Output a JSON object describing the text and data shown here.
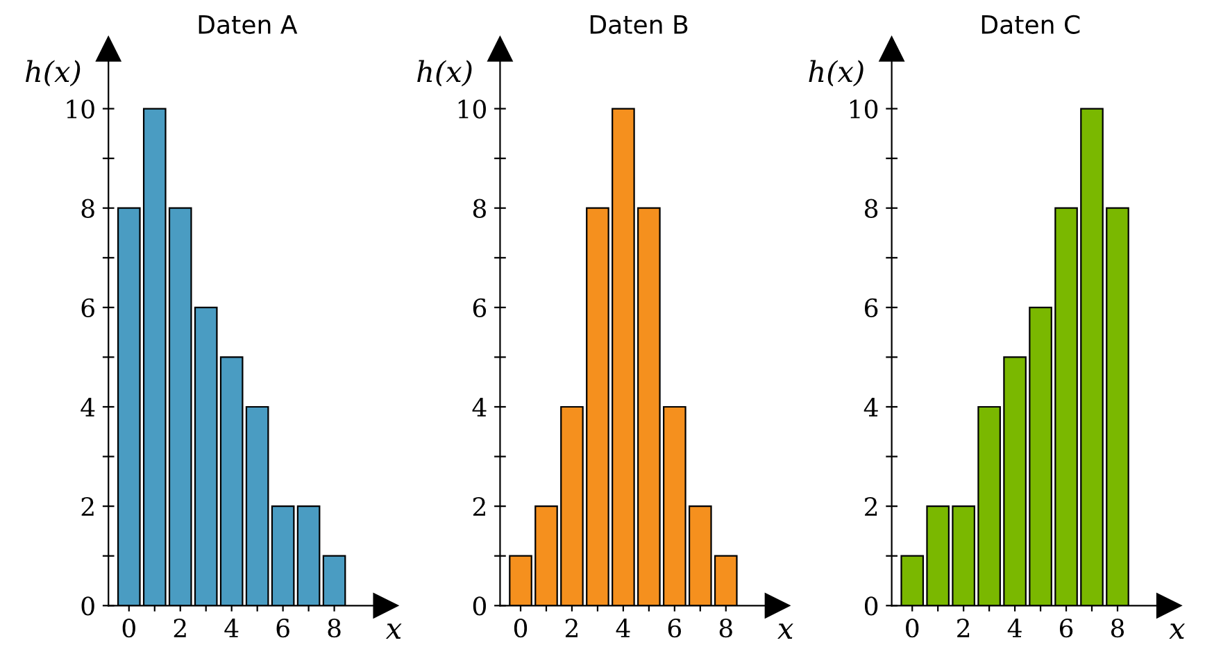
{
  "chart_data": [
    {
      "type": "bar",
      "title": "Daten A",
      "xlabel": "x",
      "ylabel": "h(x)",
      "x": [
        0,
        1,
        2,
        3,
        4,
        5,
        6,
        7,
        8
      ],
      "values": [
        8,
        10,
        8,
        6,
        5,
        4,
        2,
        2,
        1
      ],
      "color": "#4a9cc2",
      "xlim": [
        -0.8,
        10
      ],
      "ylim": [
        0,
        11.2
      ],
      "xticks": [
        0,
        {
          "value": 1,
          "label": null
        },
        2,
        {
          "value": 3,
          "label": null
        },
        4,
        {
          "value": 5,
          "label": null
        },
        6,
        {
          "value": 7,
          "label": null
        },
        8
      ],
      "yticks": [
        0,
        {
          "value": 1,
          "label": null
        },
        2,
        {
          "value": 3,
          "label": null
        },
        4,
        {
          "value": 5,
          "label": null
        },
        6,
        {
          "value": 7,
          "label": null
        },
        8,
        {
          "value": 9,
          "label": null
        },
        10
      ],
      "grid": false
    },
    {
      "type": "bar",
      "title": "Daten B",
      "xlabel": "x",
      "ylabel": "h(x)",
      "x": [
        0,
        1,
        2,
        3,
        4,
        5,
        6,
        7,
        8
      ],
      "values": [
        1,
        2,
        4,
        8,
        10,
        8,
        4,
        2,
        1
      ],
      "color": "#f5901e",
      "xlim": [
        -0.8,
        10
      ],
      "ylim": [
        0,
        11.2
      ],
      "xticks": [
        0,
        {
          "value": 1,
          "label": null
        },
        2,
        {
          "value": 3,
          "label": null
        },
        4,
        {
          "value": 5,
          "label": null
        },
        6,
        {
          "value": 7,
          "label": null
        },
        8
      ],
      "yticks": [
        0,
        {
          "value": 1,
          "label": null
        },
        2,
        {
          "value": 3,
          "label": null
        },
        4,
        {
          "value": 5,
          "label": null
        },
        6,
        {
          "value": 7,
          "label": null
        },
        8,
        {
          "value": 9,
          "label": null
        },
        10
      ],
      "grid": false
    },
    {
      "type": "bar",
      "title": "Daten C",
      "xlabel": "x",
      "ylabel": "h(x)",
      "x": [
        0,
        1,
        2,
        3,
        4,
        5,
        6,
        7,
        8
      ],
      "values": [
        1,
        2,
        2,
        4,
        5,
        6,
        8,
        10,
        8
      ],
      "color": "#7ab800",
      "xlim": [
        -0.8,
        10
      ],
      "ylim": [
        0,
        11.2
      ],
      "xticks": [
        0,
        {
          "value": 1,
          "label": null
        },
        2,
        {
          "value": 3,
          "label": null
        },
        4,
        {
          "value": 5,
          "label": null
        },
        6,
        {
          "value": 7,
          "label": null
        },
        8
      ],
      "yticks": [
        0,
        {
          "value": 1,
          "label": null
        },
        2,
        {
          "value": 3,
          "label": null
        },
        4,
        {
          "value": 5,
          "label": null
        },
        6,
        {
          "value": 7,
          "label": null
        },
        8,
        {
          "value": 9,
          "label": null
        },
        10
      ],
      "grid": false
    }
  ]
}
